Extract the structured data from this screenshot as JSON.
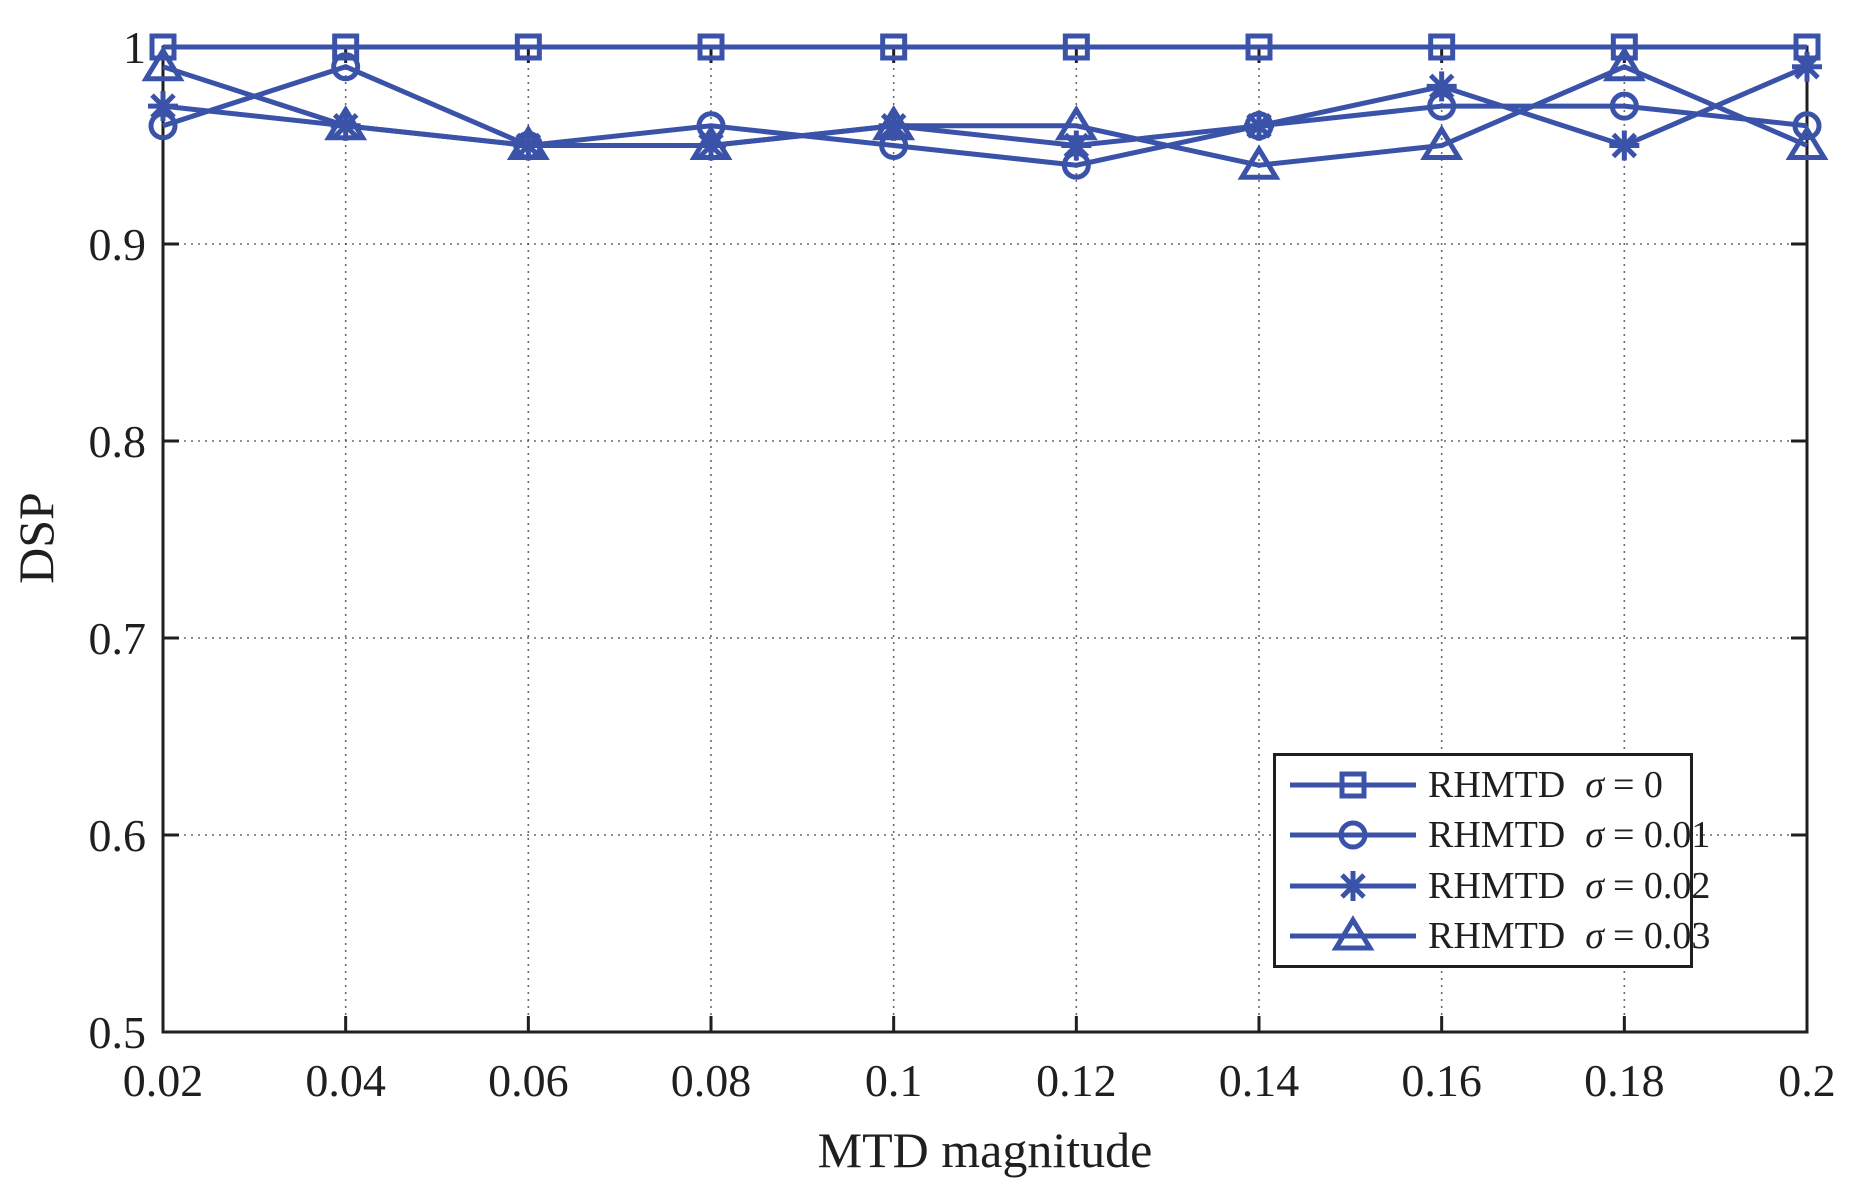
{
  "figure": {
    "background": "#ffffff",
    "line_color": "#3a53a8",
    "axis_color": "#1f1f1f",
    "grid_color": "#454545",
    "legend_border_color": "#1f1f1f"
  },
  "chart_data": {
    "type": "line",
    "title": "",
    "xlabel": "MTD magnitude",
    "ylabel": "DSP",
    "xlim": [
      0.02,
      0.2
    ],
    "ylim": [
      0.5,
      1.0
    ],
    "grid": "dotted",
    "legend_position": "inside-bottom-right",
    "x": [
      0.02,
      0.04,
      0.06,
      0.08,
      0.1,
      0.12,
      0.14,
      0.16,
      0.18,
      0.2
    ],
    "xtick_labels": [
      "0.02",
      "0.04",
      "0.06",
      "0.08",
      "0.1",
      "0.12",
      "0.14",
      "0.16",
      "0.18",
      "0.2"
    ],
    "ytick_values": [
      1.0,
      0.9,
      0.8,
      0.7,
      0.6,
      0.5
    ],
    "ytick_labels": [
      "1",
      "0.9",
      "0.8",
      "0.7",
      "0.6",
      "0.5"
    ],
    "series": [
      {
        "name": "RHMTD",
        "sigma_symbol": "σ",
        "sigma_value": "= 0",
        "marker": "square",
        "values": [
          1.0,
          1.0,
          1.0,
          1.0,
          1.0,
          1.0,
          1.0,
          1.0,
          1.0,
          1.0
        ]
      },
      {
        "name": "RHMTD",
        "sigma_symbol": "σ",
        "sigma_value": "= 0.01",
        "marker": "circle",
        "values": [
          0.96,
          0.99,
          0.95,
          0.96,
          0.95,
          0.94,
          0.96,
          0.97,
          0.97,
          0.96
        ]
      },
      {
        "name": "RHMTD",
        "sigma_symbol": "σ",
        "sigma_value": "= 0.02",
        "marker": "asterisk",
        "values": [
          0.97,
          0.96,
          0.95,
          0.95,
          0.96,
          0.95,
          0.96,
          0.98,
          0.95,
          0.99
        ]
      },
      {
        "name": "RHMTD",
        "sigma_symbol": "σ",
        "sigma_value": "= 0.03",
        "marker": "triangle",
        "values": [
          0.99,
          0.96,
          0.95,
          0.95,
          0.96,
          0.96,
          0.94,
          0.95,
          0.99,
          0.95
        ]
      }
    ]
  }
}
